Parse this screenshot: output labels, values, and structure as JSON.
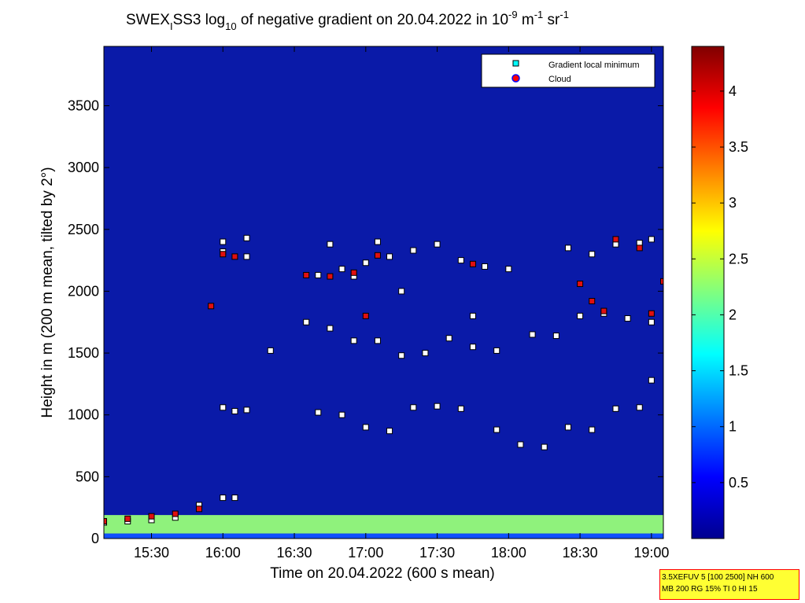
{
  "chart_data": {
    "type": "heatmap",
    "title": {
      "main": "SWEX",
      "sub1": "I",
      "part2": "SS3 log",
      "sub2": "10",
      "part3": " of negative gradient on 20.04.2022 in 10",
      "sup1": "-9",
      "part4": " m",
      "sup2": "-1",
      "part5": " sr",
      "sup3": "-1"
    },
    "xlabel": "Time on 20.04.2022 (600 s mean)",
    "ylabel": "Height in m (200 m mean, tilted by 2°)",
    "x_range": [
      "15:10",
      "19:05"
    ],
    "ylim": [
      0,
      3980
    ],
    "x_ticks": [
      "15:30",
      "16:00",
      "16:30",
      "17:00",
      "17:30",
      "18:00",
      "18:30",
      "19:00"
    ],
    "y_ticks": [
      "0",
      "500",
      "1000",
      "1500",
      "2000",
      "2500",
      "3000",
      "3500"
    ],
    "colorbar": {
      "range": [
        0,
        4.4
      ],
      "ticks": [
        "0.5",
        "1",
        "1.5",
        "2",
        "2.5",
        "3",
        "3.5",
        "4"
      ],
      "colormap": "jet"
    },
    "legend": {
      "position": "top-right",
      "entries": [
        {
          "label": "Gradient local minimum",
          "marker": "square",
          "color": "#00ffff"
        },
        {
          "label": "Cloud",
          "marker": "circle",
          "color": "#ff0000"
        }
      ]
    },
    "series": [
      {
        "name": "Gradient local minimum",
        "x": [
          "15:10",
          "15:20",
          "15:30",
          "15:40",
          "15:50",
          "16:00",
          "16:05",
          "16:00",
          "16:05",
          "16:10",
          "16:20",
          "16:35",
          "16:45",
          "16:55",
          "17:05",
          "17:15",
          "17:25",
          "17:35",
          "17:45",
          "17:55",
          "16:40",
          "16:50",
          "17:00",
          "17:10",
          "17:20",
          "17:30",
          "17:40",
          "17:50",
          "18:00",
          "18:10",
          "18:20",
          "18:30",
          "18:40",
          "18:50",
          "19:00",
          "16:00",
          "16:10",
          "16:40",
          "16:50",
          "17:00",
          "17:10",
          "17:20",
          "17:30",
          "17:40",
          "17:55",
          "18:05",
          "18:15",
          "18:25",
          "18:35",
          "18:45",
          "18:55",
          "19:00",
          "16:00",
          "16:10",
          "16:45",
          "16:55",
          "17:05",
          "17:15",
          "17:45",
          "18:25",
          "18:35",
          "18:45",
          "18:55",
          "19:00"
        ],
        "y": [
          130,
          140,
          150,
          170,
          270,
          330,
          330,
          1060,
          1030,
          1040,
          1520,
          1750,
          1700,
          1600,
          1600,
          1480,
          1500,
          1620,
          1550,
          1520,
          2130,
          2180,
          2230,
          2280,
          2330,
          2380,
          2250,
          2200,
          2180,
          1650,
          1640,
          1800,
          1820,
          1780,
          1750,
          2320,
          2280,
          1020,
          1000,
          900,
          870,
          1060,
          1070,
          1050,
          880,
          760,
          740,
          900,
          880,
          1050,
          1060,
          1280,
          2400,
          2430,
          2380,
          2120,
          2400,
          2000,
          1800,
          2350,
          2300,
          2380,
          2390,
          2420
        ]
      },
      {
        "name": "Cloud",
        "x": [
          "15:10",
          "15:20",
          "15:30",
          "15:40",
          "15:50",
          "15:55",
          "16:00",
          "16:05",
          "16:35",
          "16:45",
          "16:55",
          "17:00",
          "17:05",
          "17:45",
          "18:30",
          "18:35",
          "18:40",
          "18:45",
          "18:55",
          "19:00",
          "19:05"
        ],
        "y": [
          140,
          160,
          180,
          200,
          240,
          1880,
          2300,
          2280,
          2130,
          2120,
          2150,
          1800,
          2290,
          2220,
          2060,
          1920,
          1840,
          2420,
          2350,
          1820,
          2080
        ]
      }
    ]
  },
  "annotation": {
    "line1": "3.5XEFUV 5 [100 2500] NH 600",
    "line2": "MB 200 RG 15% TI 0 HI 15"
  }
}
